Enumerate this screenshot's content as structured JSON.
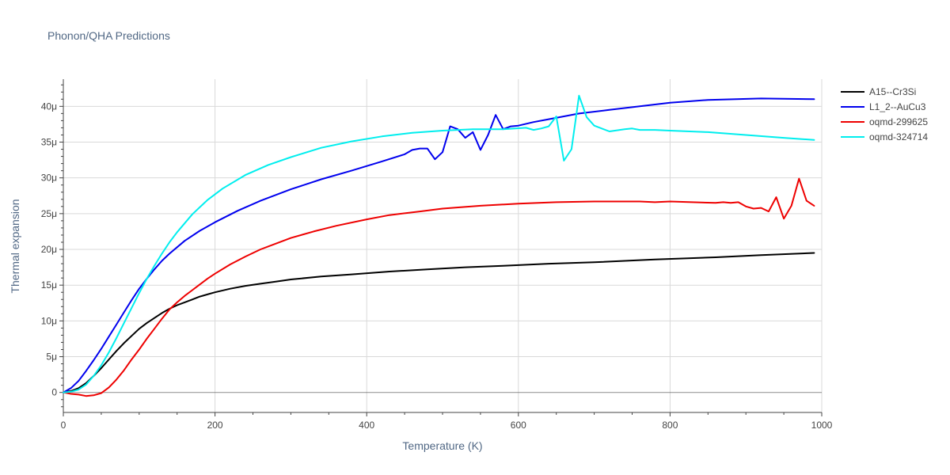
{
  "chart_data": {
    "type": "line",
    "title": "Phonon/QHA Predictions",
    "xlabel": "Temperature (K)",
    "ylabel": "Thermal expansion",
    "xlim": [
      0,
      1000
    ],
    "ylim": [
      -2.8e-06,
      4.38e-05
    ],
    "x_ticks": [
      0,
      200,
      400,
      600,
      800,
      1000
    ],
    "x_tick_labels": [
      "0",
      "200",
      "400",
      "600",
      "800",
      "1000"
    ],
    "y_ticks": [
      0,
      5e-06,
      1e-05,
      1.5e-05,
      2e-05,
      2.5e-05,
      3e-05,
      3.5e-05,
      4e-05
    ],
    "y_tick_labels": [
      "0",
      "5μ",
      "10μ",
      "15μ",
      "20μ",
      "25μ",
      "30μ",
      "35μ",
      "40μ"
    ],
    "grid": true,
    "legend_position": "top-right",
    "series": [
      {
        "name": "A15--Cr3Si",
        "color": "#000000",
        "x": [
          0,
          10,
          20,
          30,
          40,
          50,
          60,
          70,
          80,
          90,
          100,
          110,
          120,
          130,
          140,
          150,
          160,
          170,
          180,
          190,
          200,
          220,
          240,
          260,
          280,
          300,
          340,
          380,
          430,
          480,
          530,
          580,
          640,
          700,
          780,
          860,
          920,
          990
        ],
        "y": [
          0,
          2e-07,
          6e-07,
          1.3e-06,
          2.3e-06,
          3.4e-06,
          4.6e-06,
          5.8e-06,
          6.9e-06,
          7.9e-06,
          8.9e-06,
          9.7e-06,
          1.04e-05,
          1.11e-05,
          1.17e-05,
          1.22e-05,
          1.26e-05,
          1.3e-05,
          1.34e-05,
          1.37e-05,
          1.4e-05,
          1.45e-05,
          1.49e-05,
          1.52e-05,
          1.55e-05,
          1.58e-05,
          1.62e-05,
          1.65e-05,
          1.69e-05,
          1.72e-05,
          1.75e-05,
          1.77e-05,
          1.8e-05,
          1.82e-05,
          1.86e-05,
          1.89e-05,
          1.92e-05,
          1.95e-05
        ]
      },
      {
        "name": "L1_2--AuCu3",
        "color": "#0000ee",
        "x": [
          0,
          10,
          20,
          30,
          40,
          50,
          60,
          70,
          80,
          90,
          100,
          110,
          120,
          130,
          140,
          160,
          180,
          200,
          230,
          260,
          300,
          340,
          380,
          420,
          450,
          460,
          470,
          480,
          490,
          500,
          510,
          520,
          530,
          540,
          550,
          560,
          570,
          580,
          590,
          600,
          620,
          640,
          660,
          680,
          720,
          760,
          800,
          850,
          920,
          990
        ],
        "y": [
          0,
          6e-07,
          1.6e-06,
          3e-06,
          4.5e-06,
          6.1e-06,
          7.8e-06,
          9.5e-06,
          1.12e-05,
          1.29e-05,
          1.45e-05,
          1.59e-05,
          1.72e-05,
          1.84e-05,
          1.94e-05,
          2.12e-05,
          2.26e-05,
          2.38e-05,
          2.54e-05,
          2.68e-05,
          2.84e-05,
          2.98e-05,
          3.1e-05,
          3.23e-05,
          3.33e-05,
          3.39e-05,
          3.41e-05,
          3.41e-05,
          3.26e-05,
          3.36e-05,
          3.72e-05,
          3.68e-05,
          3.56e-05,
          3.64e-05,
          3.39e-05,
          3.6e-05,
          3.88e-05,
          3.68e-05,
          3.72e-05,
          3.73e-05,
          3.78e-05,
          3.82e-05,
          3.86e-05,
          3.9e-05,
          3.95e-05,
          4e-05,
          4.05e-05,
          4.09e-05,
          4.11e-05,
          4.1e-05
        ]
      },
      {
        "name": "oqmd-299625",
        "color": "#ee0000",
        "x": [
          0,
          10,
          20,
          30,
          40,
          50,
          60,
          70,
          80,
          90,
          100,
          110,
          120,
          130,
          140,
          150,
          160,
          170,
          180,
          190,
          200,
          220,
          240,
          260,
          280,
          300,
          330,
          360,
          400,
          430,
          470,
          500,
          550,
          600,
          650,
          700,
          760,
          780,
          800,
          860,
          870,
          880,
          890,
          900,
          910,
          920,
          930,
          940,
          950,
          960,
          970,
          980,
          990
        ],
        "y": [
          0,
          -2e-07,
          -3e-07,
          -5e-07,
          -4e-07,
          -1e-07,
          7e-07,
          1.8e-06,
          3.1e-06,
          4.6e-06,
          6e-06,
          7.5e-06,
          8.9e-06,
          1.03e-05,
          1.16e-05,
          1.26e-05,
          1.35e-05,
          1.43e-05,
          1.51e-05,
          1.59e-05,
          1.66e-05,
          1.79e-05,
          1.9e-05,
          2e-05,
          2.08e-05,
          2.16e-05,
          2.25e-05,
          2.33e-05,
          2.42e-05,
          2.48e-05,
          2.53e-05,
          2.57e-05,
          2.61e-05,
          2.64e-05,
          2.66e-05,
          2.67e-05,
          2.67e-05,
          2.66e-05,
          2.67e-05,
          2.65e-05,
          2.66e-05,
          2.65e-05,
          2.66e-05,
          2.6e-05,
          2.57e-05,
          2.58e-05,
          2.53e-05,
          2.73e-05,
          2.43e-05,
          2.61e-05,
          2.99e-05,
          2.68e-05,
          2.61e-05
        ]
      },
      {
        "name": "oqmd-324714",
        "color": "#00eeee",
        "x": [
          0,
          10,
          20,
          30,
          40,
          50,
          60,
          70,
          80,
          90,
          100,
          110,
          120,
          130,
          140,
          150,
          170,
          190,
          210,
          240,
          270,
          300,
          340,
          380,
          420,
          460,
          500,
          540,
          580,
          610,
          620,
          630,
          640,
          650,
          660,
          670,
          680,
          690,
          700,
          720,
          740,
          750,
          760,
          780,
          800,
          850,
          900,
          950,
          990
        ],
        "y": [
          0,
          1e-07,
          4e-07,
          1.1e-06,
          2.3e-06,
          3.8e-06,
          5.6e-06,
          7.6e-06,
          9.7e-06,
          1.18e-05,
          1.39e-05,
          1.59e-05,
          1.77e-05,
          1.94e-05,
          2.1e-05,
          2.24e-05,
          2.49e-05,
          2.69e-05,
          2.85e-05,
          3.04e-05,
          3.18e-05,
          3.29e-05,
          3.42e-05,
          3.51e-05,
          3.58e-05,
          3.63e-05,
          3.66e-05,
          3.68e-05,
          3.68e-05,
          3.7e-05,
          3.67e-05,
          3.69e-05,
          3.72e-05,
          3.86e-05,
          3.24e-05,
          3.4e-05,
          4.15e-05,
          3.85e-05,
          3.73e-05,
          3.65e-05,
          3.68e-05,
          3.69e-05,
          3.67e-05,
          3.67e-05,
          3.66e-05,
          3.64e-05,
          3.6e-05,
          3.56e-05,
          3.53e-05
        ]
      }
    ]
  }
}
